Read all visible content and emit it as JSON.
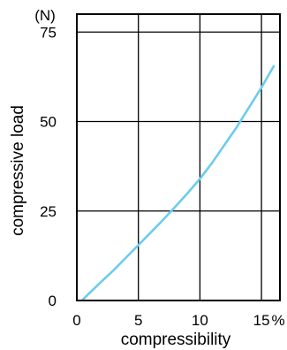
{
  "chart_data": {
    "type": "line",
    "title": "",
    "xlabel": "compressibility",
    "ylabel": "compressive load",
    "x_unit": "%",
    "y_unit": "(N)",
    "xlim": [
      0,
      16.5
    ],
    "ylim": [
      0,
      80
    ],
    "x_ticks": [
      0,
      5,
      10,
      15
    ],
    "y_ticks": [
      0,
      25,
      50,
      75
    ],
    "grid": true,
    "legend": "none",
    "line_color": "#6cccec",
    "series": [
      {
        "x": [
          0.5,
          1,
          2,
          3,
          4,
          5,
          6,
          7,
          8,
          9,
          10,
          11,
          12,
          13,
          14,
          15,
          16
        ],
        "y": [
          0.3,
          2,
          5.3,
          8.5,
          12,
          15.5,
          19,
          22.5,
          26.2,
          30,
          34,
          38.5,
          43.5,
          48.5,
          54,
          59.5,
          65.5
        ]
      }
    ]
  }
}
